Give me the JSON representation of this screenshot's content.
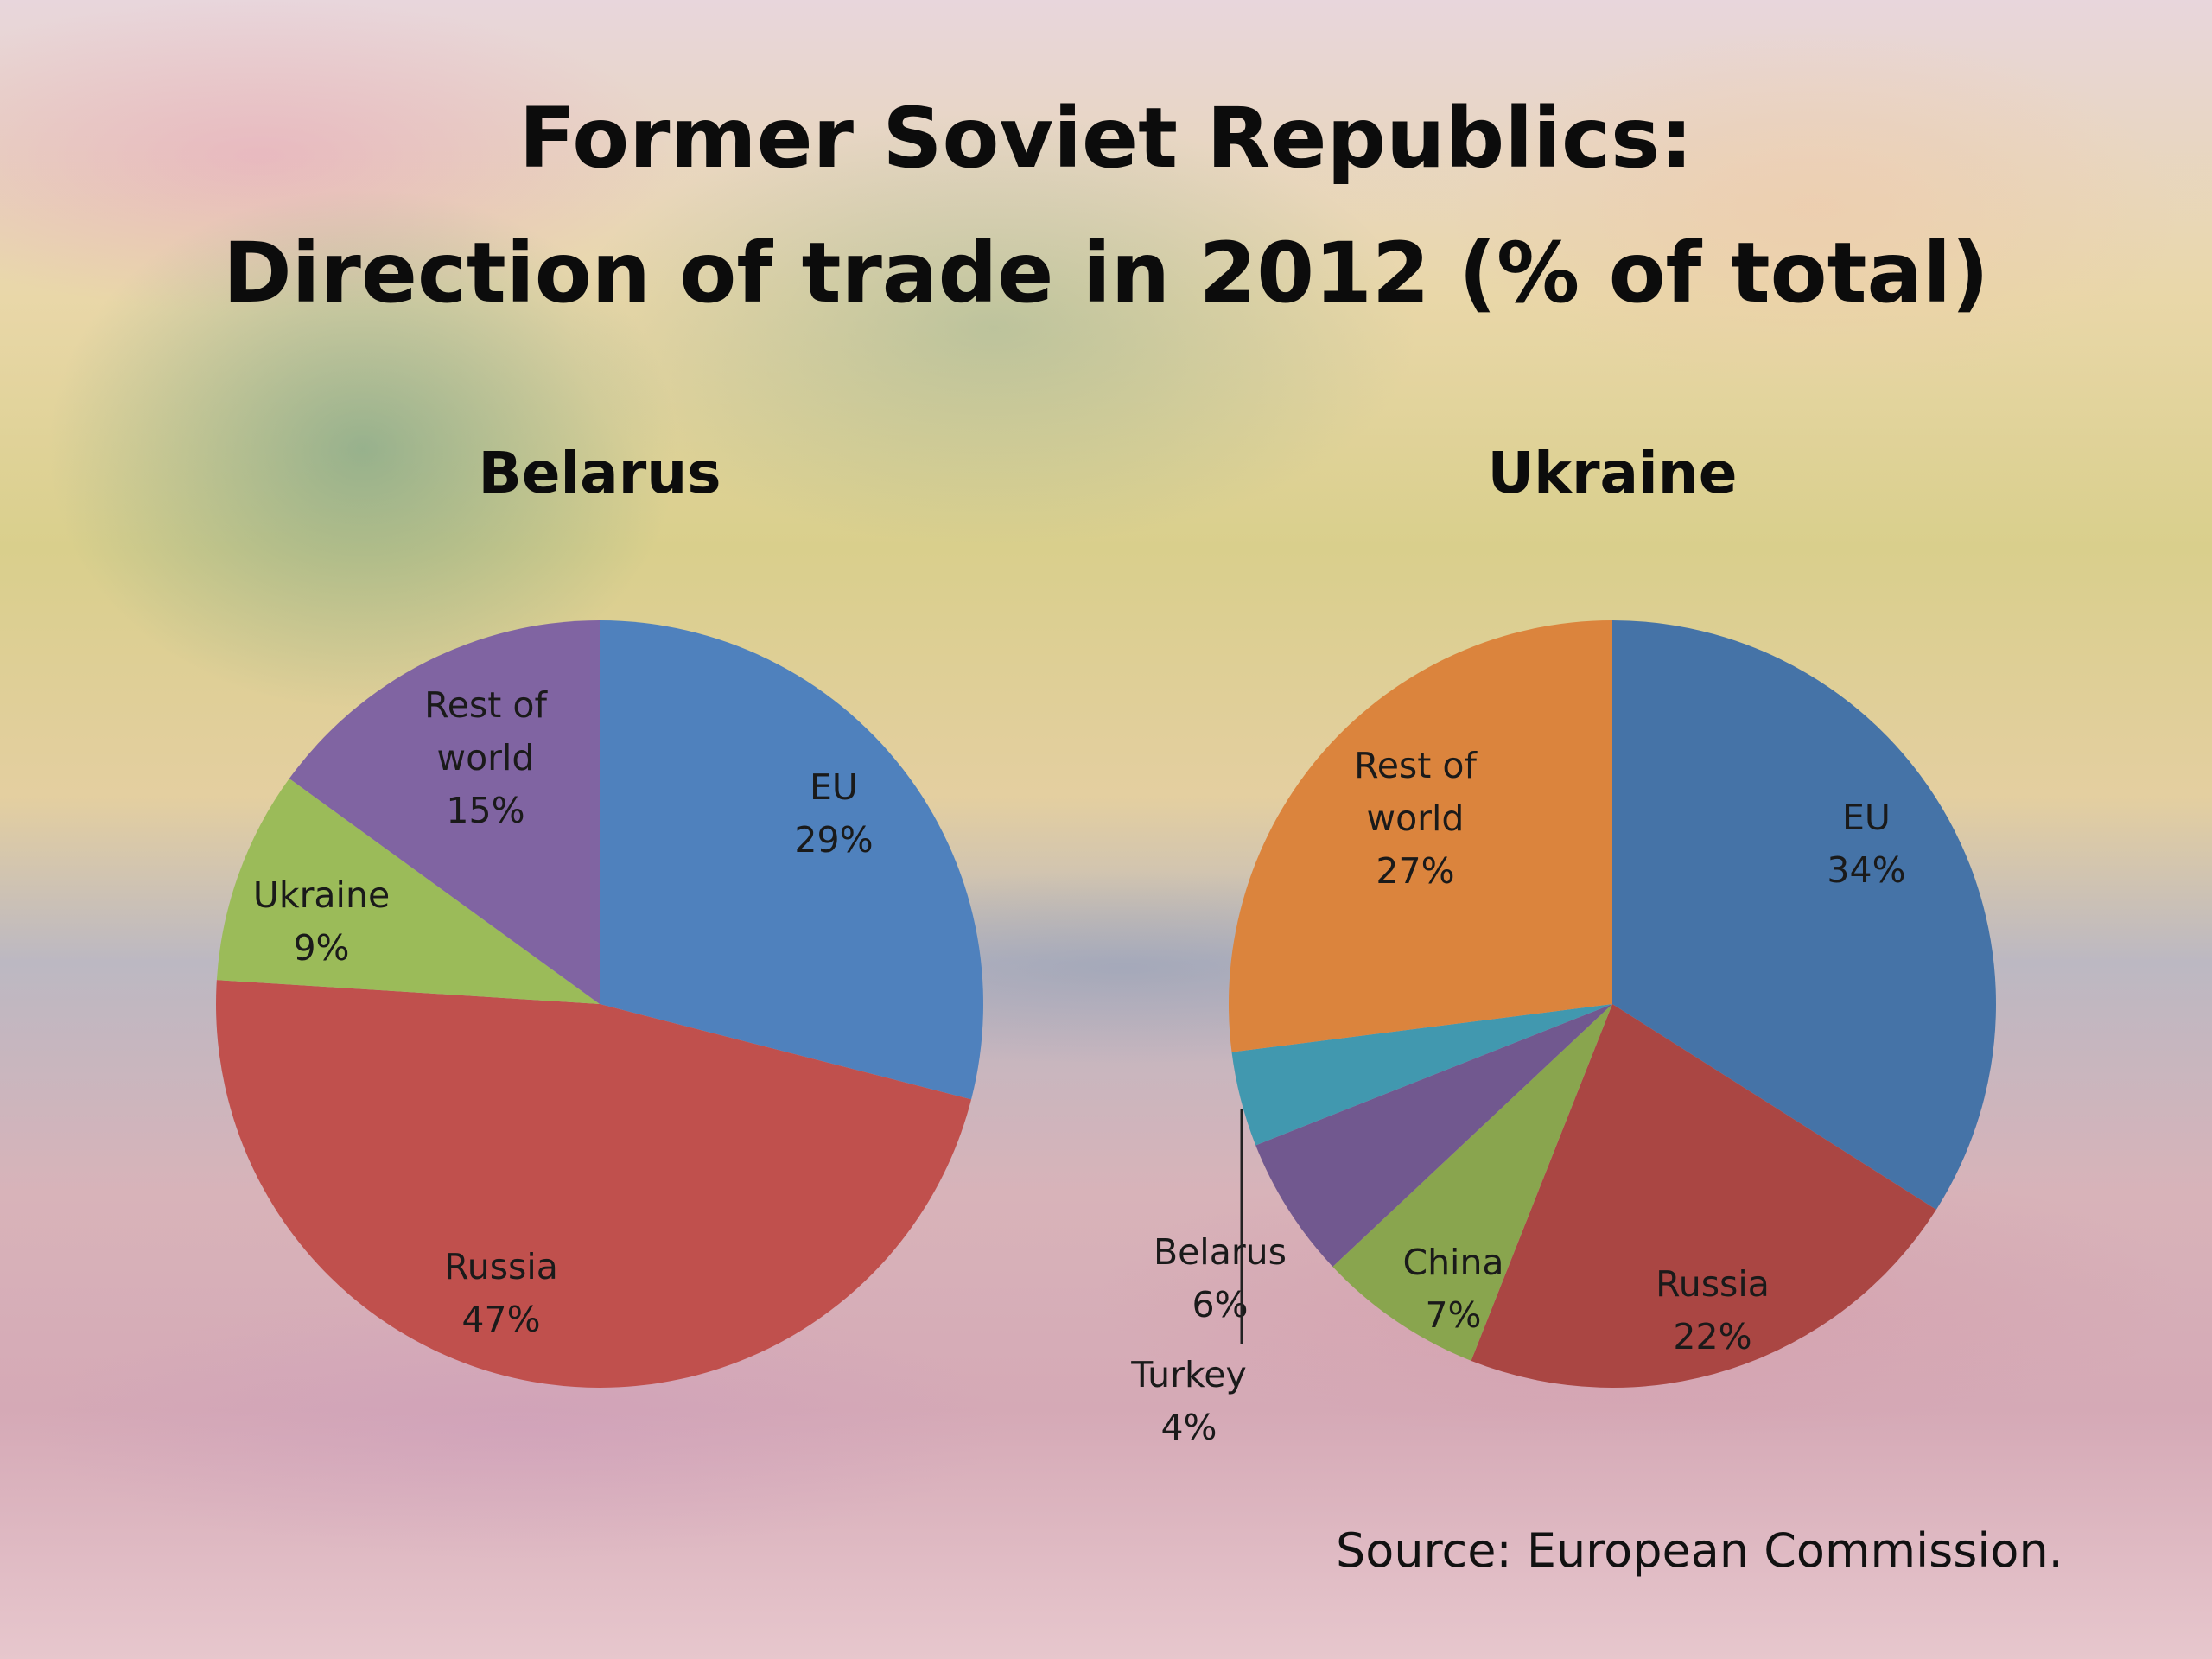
{
  "title_line1": "Former Soviet Republics:",
  "title_line2": "Direction of trade in 2012 (% of total)",
  "source": "Source: European Commission.",
  "chart_data": [
    {
      "type": "pie",
      "title": "Belarus",
      "slices": [
        {
          "label": "EU",
          "value": 29,
          "color": "#4f81bd"
        },
        {
          "label": "Russia",
          "value": 47,
          "color": "#c0504d"
        },
        {
          "label": "Ukraine",
          "value": 9,
          "color": "#9bbb59"
        },
        {
          "label": "Rest of world",
          "value": 15,
          "color": "#8064a2"
        }
      ]
    },
    {
      "type": "pie",
      "title": "Ukraine",
      "slices": [
        {
          "label": "EU",
          "value": 34,
          "color": "#4573a7"
        },
        {
          "label": "Russia",
          "value": 22,
          "color": "#aa4643"
        },
        {
          "label": "China",
          "value": 7,
          "color": "#89a54e"
        },
        {
          "label": "Belarus",
          "value": 6,
          "color": "#71588f"
        },
        {
          "label": "Turkey",
          "value": 4,
          "color": "#4198af"
        },
        {
          "label": "Rest of world",
          "value": 27,
          "color": "#db843d"
        }
      ]
    }
  ]
}
